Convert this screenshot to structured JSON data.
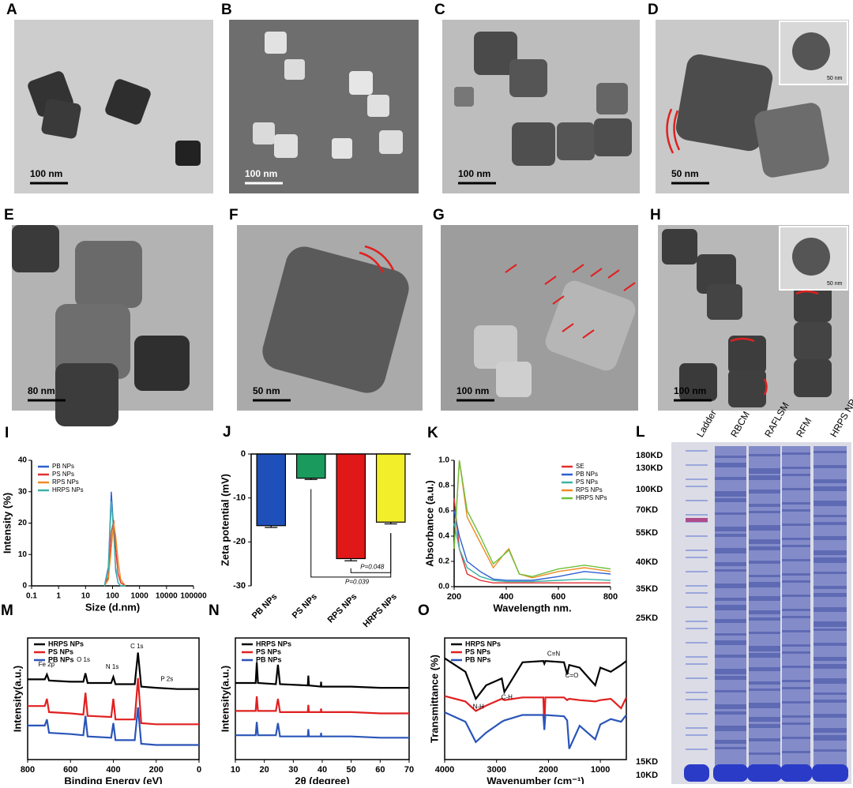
{
  "images": [
    {
      "letter": "A",
      "scale": "100 nm"
    },
    {
      "letter": "B",
      "scale": "100 nm"
    },
    {
      "letter": "C",
      "scale": "100 nm"
    },
    {
      "letter": "D",
      "scale": "50 nm",
      "inset_scale": "50 nm"
    },
    {
      "letter": "E",
      "scale": "80 nm"
    },
    {
      "letter": "F",
      "scale": "50 nm"
    },
    {
      "letter": "G",
      "scale": "100 nm"
    },
    {
      "letter": "H",
      "scale": "100 nm",
      "inset_scale": "50 nm"
    }
  ],
  "chart_data": [
    {
      "type": "line",
      "letter": "I",
      "xlabel": "Size (d.nm)",
      "ylabel": "Intensity (%)",
      "xlog": true,
      "frame": false,
      "legend": "upper left",
      "x": [
        50,
        70,
        90,
        110,
        130,
        160,
        200,
        300
      ],
      "xlim": [
        0.1,
        100000
      ],
      "xticks": [
        0.1,
        1,
        10,
        100,
        1000,
        10000,
        100000
      ],
      "ylim": [
        0,
        40
      ],
      "yticks": [
        0,
        10,
        20,
        30,
        40
      ],
      "series": [
        {
          "name": "PB NPs",
          "color": "#2e5fd0",
          "values": [
            0,
            6,
            30,
            18,
            5,
            1,
            0,
            0
          ]
        },
        {
          "name": "PS NPs",
          "color": "#e03030",
          "values": [
            0,
            3,
            17,
            21,
            12,
            4,
            1,
            0
          ]
        },
        {
          "name": "RPS NPs",
          "color": "#f08a24",
          "values": [
            0,
            2,
            12,
            20,
            16,
            8,
            2,
            0
          ]
        },
        {
          "name": "HRPS NPs",
          "color": "#3bb3a6",
          "values": [
            0,
            5,
            27,
            17,
            6,
            1,
            0,
            0
          ]
        }
      ]
    },
    {
      "type": "bar",
      "letter": "J",
      "ylabel": "Zeta potential (mV)",
      "categories": [
        "PB NPs",
        "PS NPs",
        "RPS NPs",
        "HRPS NPs"
      ],
      "values": [
        -16.3,
        -5.5,
        -23.8,
        -15.5
      ],
      "errors": [
        0.4,
        0.3,
        0.5,
        0.4
      ],
      "colors": [
        "#1f4fb8",
        "#1a9a5c",
        "#e01818",
        "#f2ee2a"
      ],
      "ylim": [
        -30,
        0
      ],
      "yticks": [
        -30,
        -20,
        -10,
        0
      ],
      "annotations": [
        "P=0.039",
        "P=0.048"
      ]
    },
    {
      "type": "line",
      "letter": "K",
      "xlabel": "Wavelength nm.",
      "ylabel": "Absorbance (a.u.)",
      "xlog": false,
      "frame": false,
      "legend": "upper right",
      "x": [
        200,
        220,
        250,
        300,
        350,
        400,
        410,
        450,
        500,
        600,
        700,
        800
      ],
      "xlim": [
        200,
        800
      ],
      "xticks": [
        200,
        400,
        600,
        800
      ],
      "ylim": [
        0,
        1
      ],
      "yticks": [
        {
          "value": 0,
          "label": "0.0"
        },
        {
          "value": 0.2,
          "label": "0.2"
        },
        {
          "value": 0.4,
          "label": "0.4"
        },
        {
          "value": 0.6,
          "label": "0.6"
        },
        {
          "value": 0.8,
          "label": "0.8"
        },
        {
          "value": 1,
          "label": "1.0"
        }
      ],
      "series": [
        {
          "name": "SE",
          "color": "#e03030",
          "values": [
            0.7,
            0.3,
            0.1,
            0.05,
            0.03,
            0.03,
            0.03,
            0.03,
            0.03,
            0.03,
            0.03,
            0.03
          ]
        },
        {
          "name": "PB NPs",
          "color": "#2e5fd0",
          "values": [
            0.6,
            0.4,
            0.2,
            0.12,
            0.06,
            0.05,
            0.05,
            0.05,
            0.05,
            0.08,
            0.12,
            0.1
          ]
        },
        {
          "name": "PS NPs",
          "color": "#3bb3a6",
          "values": [
            0.5,
            0.3,
            0.15,
            0.08,
            0.05,
            0.04,
            0.04,
            0.04,
            0.04,
            0.05,
            0.06,
            0.05
          ]
        },
        {
          "name": "RPS NPs",
          "color": "#f08a24",
          "values": [
            0.3,
            1.0,
            0.55,
            0.35,
            0.15,
            0.28,
            0.3,
            0.1,
            0.07,
            0.12,
            0.15,
            0.12
          ]
        },
        {
          "name": "HRPS NPs",
          "color": "#6cc03a",
          "values": [
            0.3,
            1.0,
            0.6,
            0.4,
            0.18,
            0.27,
            0.29,
            0.1,
            0.08,
            0.14,
            0.17,
            0.14
          ]
        }
      ]
    },
    {
      "type": "line",
      "letter": "M",
      "xlabel": "Binding Energy (eV)",
      "ylabel": "Intensity(a.u.)",
      "xlog": false,
      "frame": true,
      "legend": "upper left",
      "x": [
        800,
        720,
        710,
        700,
        600,
        540,
        530,
        520,
        410,
        400,
        390,
        300,
        285,
        270,
        200,
        100,
        0
      ],
      "xlim": [
        800,
        0
      ],
      "xticks": [
        800,
        600,
        400,
        200,
        0
      ],
      "ylim": [
        0,
        10
      ],
      "annotations": [
        "Fe 2p",
        "O 1s",
        "N 1s",
        "C 1s",
        "P 2s"
      ],
      "series": [
        {
          "name": "HRPS NPs",
          "color": "#000000",
          "values": [
            6.6,
            6.6,
            7.0,
            6.5,
            6.4,
            6.4,
            7.1,
            6.3,
            6.3,
            6.8,
            6.2,
            6.2,
            8.8,
            6.0,
            5.9,
            5.8,
            5.8
          ]
        },
        {
          "name": "PS NPs",
          "color": "#e02020",
          "values": [
            4.4,
            4.4,
            5.0,
            3.9,
            3.8,
            3.7,
            5.5,
            3.6,
            3.5,
            5.0,
            3.3,
            3.3,
            6.7,
            3.0,
            2.9,
            2.9,
            2.9
          ]
        },
        {
          "name": "PB NPs",
          "color": "#2a55b8",
          "values": [
            2.8,
            2.8,
            3.3,
            2.2,
            2.1,
            2.0,
            3.6,
            1.9,
            1.8,
            3.0,
            1.6,
            1.6,
            4.3,
            1.3,
            1.2,
            1.2,
            1.2
          ]
        }
      ]
    },
    {
      "type": "line",
      "letter": "N",
      "xlabel": "2θ (degree)",
      "ylabel": "Intensity(a.u.)",
      "xlog": false,
      "frame": true,
      "legend": "upper left",
      "x": [
        10,
        17,
        17.4,
        17.8,
        24,
        24.7,
        25.4,
        35,
        35.2,
        35.4,
        39.5,
        39.6,
        39.7,
        50,
        60,
        70
      ],
      "xlim": [
        10,
        70
      ],
      "xticks": [
        10,
        20,
        30,
        40,
        50,
        60,
        70
      ],
      "ylim": [
        0,
        10
      ],
      "series": [
        {
          "name": "HRPS NPs",
          "color": "#000000",
          "values": [
            6.3,
            6.3,
            8.0,
            6.3,
            6.2,
            7.8,
            6.2,
            6.1,
            6.9,
            6.1,
            6.0,
            6.4,
            6.0,
            6.0,
            5.9,
            5.9
          ]
        },
        {
          "name": "PS NPs",
          "color": "#e02020",
          "values": [
            4.0,
            4.0,
            5.2,
            4.0,
            4.0,
            5.0,
            3.9,
            3.9,
            4.5,
            3.9,
            3.9,
            4.2,
            3.9,
            3.9,
            3.8,
            3.8
          ]
        },
        {
          "name": "PB NPs",
          "color": "#2a55b8",
          "values": [
            2.0,
            2.0,
            3.1,
            2.0,
            2.0,
            3.0,
            1.9,
            1.9,
            2.5,
            1.9,
            1.9,
            2.2,
            1.9,
            1.9,
            1.8,
            1.8
          ]
        }
      ]
    },
    {
      "type": "line",
      "letter": "O",
      "xlabel": "Wavenumber (cm⁻¹)",
      "ylabel": "Transmittance (%)",
      "xlog": false,
      "frame": true,
      "legend": "upper left",
      "x": [
        4000,
        3600,
        3400,
        3200,
        2900,
        2850,
        2500,
        2100,
        2080,
        2060,
        1700,
        1640,
        1600,
        1400,
        1100,
        1000,
        800,
        600,
        500
      ],
      "xlim": [
        4000,
        500
      ],
      "xticks": [
        4000,
        3000,
        2000,
        1000
      ],
      "ylim": [
        0,
        9
      ],
      "annotations": [
        "N-H",
        "C-H",
        "C≡N",
        "C=O"
      ],
      "series": [
        {
          "name": "HRPS NPs",
          "color": "#000000",
          "values": [
            7.5,
            6.5,
            4.5,
            5.5,
            6.0,
            5.0,
            7.2,
            7.3,
            7.1,
            7.3,
            7.2,
            6.3,
            7.0,
            6.8,
            5.5,
            6.8,
            6.5,
            7.0,
            7.3
          ]
        },
        {
          "name": "PS NPs",
          "color": "#e02020",
          "values": [
            4.7,
            4.3,
            3.6,
            4.0,
            4.5,
            4.4,
            4.6,
            4.6,
            2.4,
            4.6,
            4.6,
            4.4,
            4.5,
            4.4,
            4.3,
            4.4,
            4.5,
            3.8,
            4.6
          ]
        },
        {
          "name": "PB NPs",
          "color": "#2a55b8",
          "values": [
            3.5,
            2.8,
            1.3,
            2.0,
            2.8,
            2.9,
            3.3,
            3.3,
            2.2,
            3.3,
            3.2,
            2.9,
            0.8,
            2.5,
            1.5,
            2.6,
            3.0,
            2.8,
            3.3
          ]
        }
      ]
    }
  ],
  "gel": {
    "letter": "L",
    "lanes": [
      "Ladder",
      "RBCM",
      "RAFLSM",
      "RFM",
      "HRPS NPs"
    ],
    "markers": [
      "180KD",
      "130KD",
      "100KD",
      "70KD",
      "55KD",
      "40KD",
      "35KD",
      "25KD",
      "15KD",
      "10KD"
    ]
  }
}
